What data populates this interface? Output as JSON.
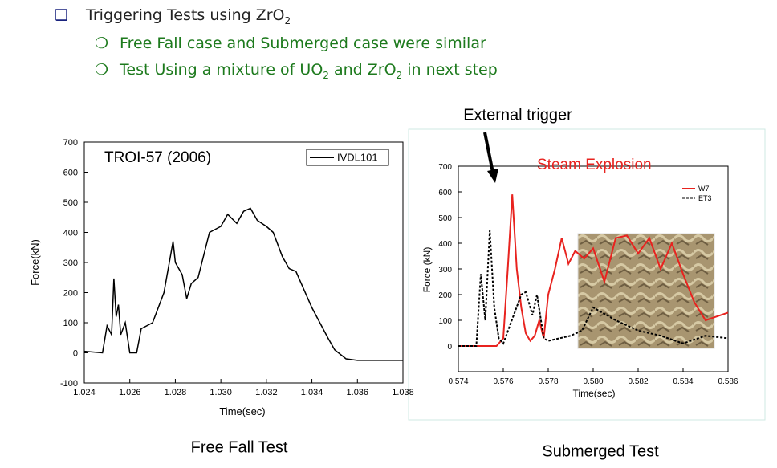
{
  "bullets": [
    {
      "runs": [
        {
          "t": "Triggering Tests using ZrO"
        },
        {
          "sub": "2"
        }
      ]
    },
    {
      "runs": [
        {
          "t": "Free Fall case and Submerged case were similar"
        }
      ]
    },
    {
      "runs": [
        {
          "t": "Test Using a mixture of UO"
        },
        {
          "sub": "2"
        },
        {
          "t": " and ZrO"
        },
        {
          "sub": "2"
        },
        {
          "t": " in next step"
        }
      ]
    }
  ],
  "trigger_label": "External trigger",
  "captions": [
    "Free Fall Test",
    "Submerged Test"
  ],
  "chart_data": [
    {
      "type": "line",
      "annotation": "TROI-57 (2006)",
      "x_label": "Time(sec)",
      "y_label": "Force(kN)",
      "xlim": [
        1.024,
        1.038
      ],
      "xticks": [
        1.024,
        1.026,
        1.028,
        {
          "value": 1.03,
          "label": "1.030"
        },
        1.032,
        1.034,
        1.036,
        1.038
      ],
      "ylim": [
        -100,
        700
      ],
      "yticks": [
        -100,
        0,
        100,
        200,
        300,
        400,
        500,
        600,
        700
      ],
      "legend": "top-right",
      "series": [
        {
          "name": "IVDL101",
          "color": "#000000",
          "dash": false,
          "x": [
            1.024,
            1.0248,
            1.025,
            1.0252,
            1.0253,
            1.0254,
            1.0255,
            1.0256,
            1.0258,
            1.026,
            1.0263,
            1.0265,
            1.027,
            1.0275,
            1.0279,
            1.028,
            1.0283,
            1.0285,
            1.0287,
            1.029,
            1.0295,
            1.03,
            1.0303,
            1.0307,
            1.031,
            1.0313,
            1.0316,
            1.032,
            1.0323,
            1.0327,
            1.033,
            1.0333,
            1.034,
            1.0347,
            1.035,
            1.0355,
            1.036,
            1.038
          ],
          "values": [
            5,
            0,
            90,
            60,
            247,
            120,
            160,
            60,
            100,
            0,
            0,
            80,
            100,
            200,
            370,
            300,
            260,
            180,
            230,
            250,
            400,
            420,
            460,
            430,
            470,
            480,
            440,
            420,
            400,
            320,
            280,
            270,
            150,
            50,
            10,
            -20,
            -25,
            -25
          ]
        }
      ]
    },
    {
      "type": "line",
      "annotation": "Steam Explosion",
      "annotation_color": "#e8231f",
      "x_label": "Time(sec)",
      "y_label": "Force (kN)",
      "xlim": [
        0.574,
        0.586
      ],
      "xticks": [
        0.574,
        0.576,
        0.578,
        {
          "value": 0.58,
          "label": "0.580"
        },
        0.582,
        0.584,
        0.586
      ],
      "ylim": [
        -100,
        700
      ],
      "yticks": [
        0,
        100,
        200,
        300,
        400,
        500,
        600,
        700
      ],
      "legend": "top-right",
      "series": [
        {
          "name": "W7",
          "color": "#e8231f",
          "dash": false,
          "x": [
            0.574,
            0.5757,
            0.576,
            0.5762,
            0.5764,
            0.5766,
            0.5768,
            0.577,
            0.5772,
            0.5774,
            0.5776,
            0.5778,
            0.578,
            0.5783,
            0.5786,
            0.5789,
            0.5792,
            0.5796,
            0.58,
            0.5805,
            0.581,
            0.5815,
            0.582,
            0.5825,
            0.583,
            0.5835,
            0.584,
            0.5845,
            0.585,
            0.586
          ],
          "values": [
            0,
            0,
            30,
            300,
            590,
            300,
            150,
            50,
            20,
            40,
            100,
            30,
            200,
            300,
            420,
            320,
            370,
            340,
            380,
            250,
            420,
            430,
            360,
            420,
            300,
            400,
            280,
            170,
            100,
            130
          ]
        },
        {
          "name": "ET3",
          "color": "#000000",
          "dash": true,
          "x": [
            0.574,
            0.5748,
            0.575,
            0.5752,
            0.5754,
            0.5756,
            0.5758,
            0.576,
            0.5768,
            0.577,
            0.5773,
            0.5775,
            0.5778,
            0.578,
            0.579,
            0.5795,
            0.58,
            0.581,
            0.582,
            0.583,
            0.584,
            0.585,
            0.586
          ],
          "values": [
            0,
            0,
            280,
            100,
            450,
            150,
            30,
            10,
            200,
            210,
            120,
            200,
            30,
            20,
            40,
            60,
            150,
            100,
            60,
            40,
            10,
            40,
            30
          ]
        }
      ]
    }
  ]
}
